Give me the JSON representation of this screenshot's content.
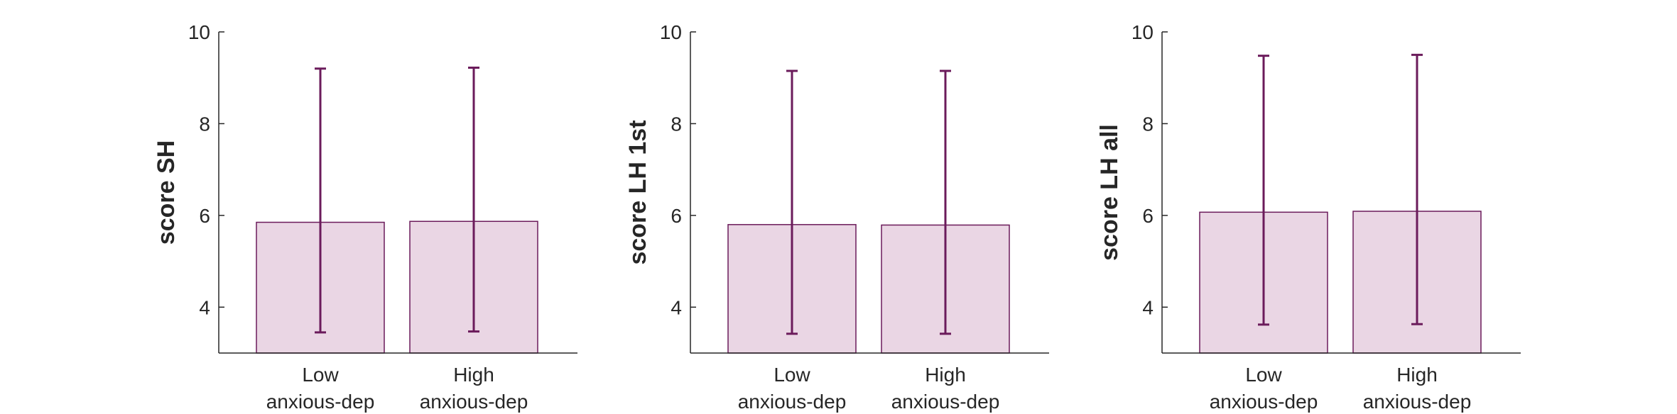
{
  "colors": {
    "bar_fill": "#ead6e4",
    "bar_edge": "#6b1b5b",
    "errorbar": "#6b1b5b",
    "axis": "#262626"
  },
  "chart_data": [
    {
      "type": "bar",
      "categories": [
        [
          "Low",
          "anxious-dep"
        ],
        [
          "High",
          "anxious-dep"
        ]
      ],
      "values": [
        5.85,
        5.87
      ],
      "error_low": [
        3.45,
        3.47
      ],
      "error_high": [
        9.2,
        9.22
      ],
      "ylabel": "score SH",
      "xlabel": "",
      "ylim": [
        3,
        10
      ],
      "yticks": [
        4,
        6,
        8,
        10
      ],
      "grid": false
    },
    {
      "type": "bar",
      "categories": [
        [
          "Low",
          "anxious-dep"
        ],
        [
          "High",
          "anxious-dep"
        ]
      ],
      "values": [
        5.8,
        5.79
      ],
      "error_low": [
        3.42,
        3.42
      ],
      "error_high": [
        9.15,
        9.15
      ],
      "ylabel": "score LH 1st",
      "xlabel": "",
      "ylim": [
        3,
        10
      ],
      "yticks": [
        4,
        6,
        8,
        10
      ],
      "grid": false
    },
    {
      "type": "bar",
      "categories": [
        [
          "Low",
          "anxious-dep"
        ],
        [
          "High",
          "anxious-dep"
        ]
      ],
      "values": [
        6.07,
        6.09
      ],
      "error_low": [
        3.62,
        3.63
      ],
      "error_high": [
        9.48,
        9.5
      ],
      "ylabel": "score LH all",
      "xlabel": "",
      "ylim": [
        3,
        10
      ],
      "yticks": [
        4,
        6,
        8,
        10
      ],
      "grid": false
    }
  ]
}
